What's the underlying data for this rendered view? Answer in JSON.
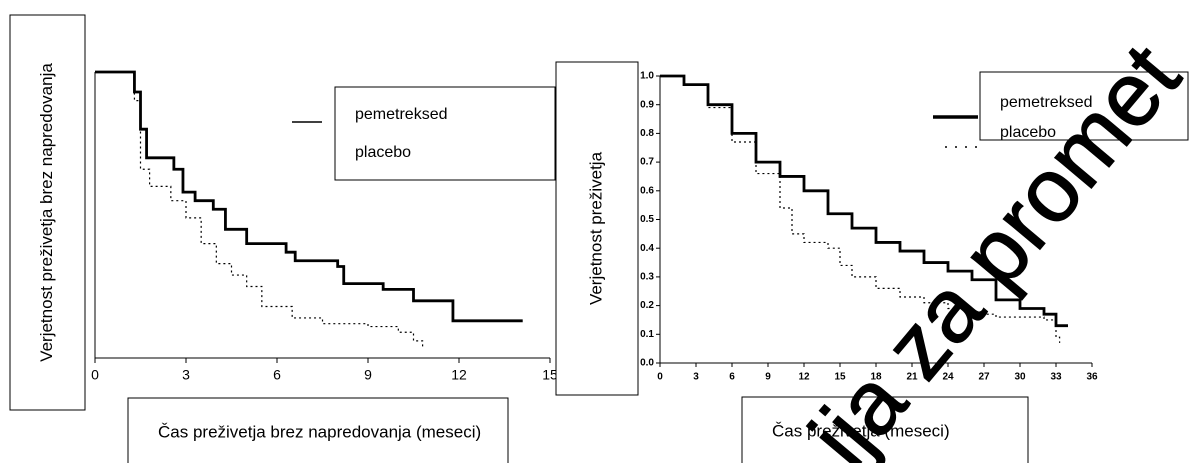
{
  "watermark": "ija za promet",
  "chart_data": [
    {
      "type": "line",
      "step": true,
      "y_label": "Verjetnost preživetja brez napredovanja",
      "x_label": "Čas preživetja brez napredovanja (meseci)",
      "xlim": [
        0,
        15
      ],
      "xticks": [
        0,
        3,
        6,
        9,
        12,
        15
      ],
      "ylim": [
        0,
        1
      ],
      "series": [
        {
          "name": "pemetreksed",
          "color": "#000000",
          "dash": false,
          "x": [
            0,
            1.2,
            1.3,
            1.5,
            1.7,
            2.6,
            2.9,
            3.3,
            3.9,
            4.3,
            5.0,
            6.3,
            6.6,
            8.0,
            8.2,
            9.5,
            10.5,
            11.8,
            11.8,
            14.1
          ],
          "values": [
            1,
            1,
            0.93,
            0.8,
            0.7,
            0.66,
            0.58,
            0.55,
            0.52,
            0.45,
            0.4,
            0.37,
            0.34,
            0.32,
            0.26,
            0.24,
            0.2,
            0.2,
            0.13,
            0.13
          ]
        },
        {
          "name": "placebo",
          "color": "#000000",
          "dash": true,
          "x": [
            0,
            1.2,
            1.3,
            1.5,
            1.8,
            2.5,
            3,
            3.5,
            4,
            4.5,
            5,
            5.5,
            6.5,
            7.5,
            9,
            10,
            10.5,
            10.8
          ],
          "values": [
            1,
            1,
            0.9,
            0.66,
            0.6,
            0.55,
            0.49,
            0.4,
            0.33,
            0.29,
            0.25,
            0.18,
            0.14,
            0.12,
            0.11,
            0.09,
            0.06,
            0.04
          ]
        }
      ]
    },
    {
      "type": "line",
      "step": true,
      "y_label": "Verjetnost preživetja",
      "x_label": "Čas preživetja (meseci)",
      "xlim": [
        0,
        36
      ],
      "xticks": [
        0,
        3,
        6,
        9,
        12,
        15,
        18,
        21,
        24,
        27,
        30,
        33,
        36
      ],
      "ylim": [
        0,
        1
      ],
      "yticks": [
        {
          "value": 0,
          "label": "0.0"
        },
        0.1,
        0.2,
        0.3,
        0.4,
        0.5,
        0.6,
        0.7,
        0.8,
        0.9,
        {
          "value": 1,
          "label": "1.0"
        }
      ],
      "series": [
        {
          "name": "pemetreksed",
          "color": "#000000",
          "dash": false,
          "x": [
            0,
            2,
            4,
            6,
            8,
            10,
            12,
            14,
            16,
            18,
            20,
            22,
            24,
            26,
            28,
            30,
            32,
            33,
            34
          ],
          "values": [
            1,
            0.97,
            0.9,
            0.8,
            0.7,
            0.65,
            0.6,
            0.52,
            0.47,
            0.42,
            0.39,
            0.35,
            0.32,
            0.29,
            0.22,
            0.19,
            0.17,
            0.13,
            0.13
          ]
        },
        {
          "name": "placebo",
          "color": "#000000",
          "dash": true,
          "x": [
            0,
            2,
            4,
            6,
            8,
            10,
            11,
            12,
            14,
            15,
            16,
            18,
            20,
            22,
            24,
            26,
            28,
            30,
            32,
            33,
            33.3
          ],
          "values": [
            1,
            0.97,
            0.89,
            0.77,
            0.66,
            0.54,
            0.45,
            0.42,
            0.4,
            0.34,
            0.3,
            0.26,
            0.23,
            0.21,
            0.19,
            0.17,
            0.16,
            0.16,
            0.15,
            0.09,
            0.07
          ]
        }
      ]
    }
  ]
}
